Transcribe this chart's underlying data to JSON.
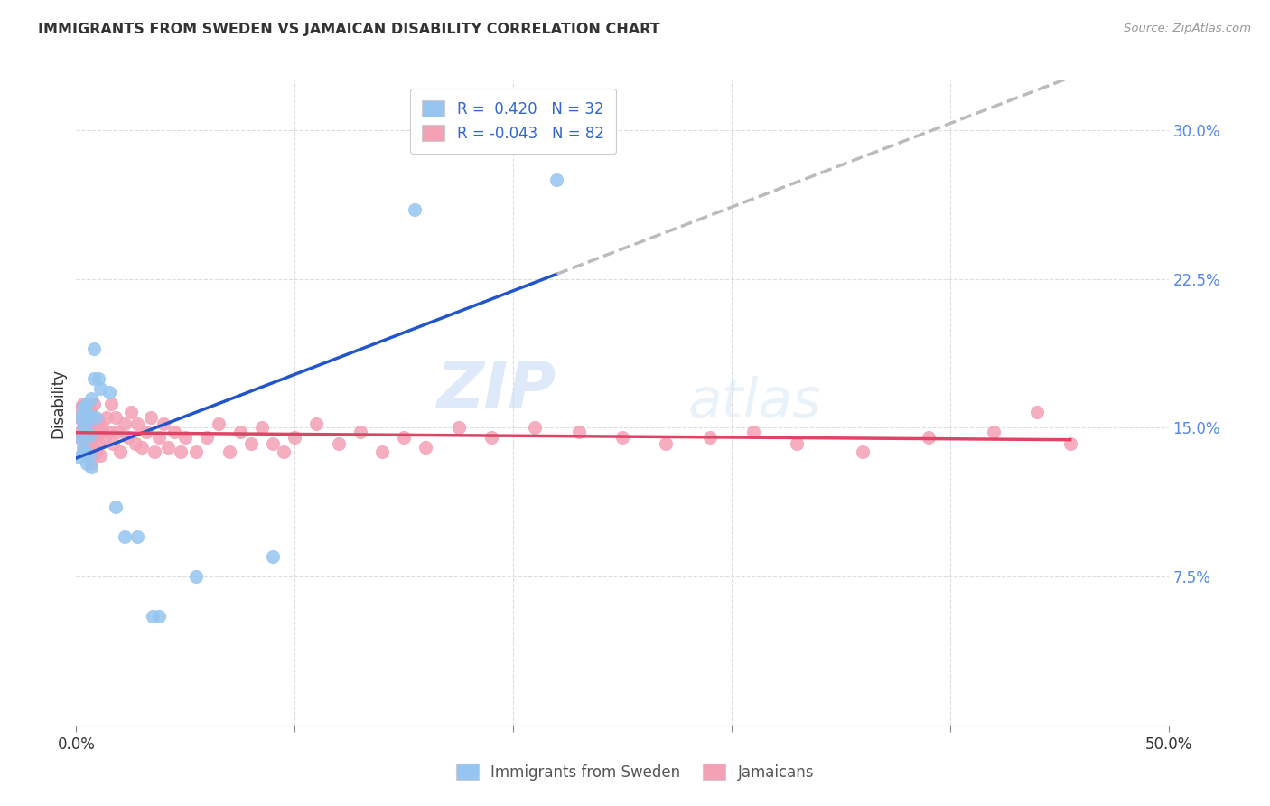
{
  "title": "IMMIGRANTS FROM SWEDEN VS JAMAICAN DISABILITY CORRELATION CHART",
  "source": "Source: ZipAtlas.com",
  "ylabel": "Disability",
  "xlim": [
    0.0,
    0.5
  ],
  "ylim": [
    0.0,
    0.325
  ],
  "y_ticks": [
    0.075,
    0.15,
    0.225,
    0.3
  ],
  "legend_R1": "0.420",
  "legend_N1": "32",
  "legend_R2": "-0.043",
  "legend_N2": "82",
  "color_sweden": "#95C5F0",
  "color_jamaica": "#F4A0B5",
  "trendline_sweden_color": "#2255CC",
  "trendline_jamaica_color": "#DD4466",
  "trendline_extrapolate_color": "#BBBBBB",
  "watermark_zip": "ZIP",
  "watermark_atlas": "atlas",
  "sweden_x": [
    0.001,
    0.002,
    0.002,
    0.003,
    0.003,
    0.003,
    0.004,
    0.004,
    0.004,
    0.005,
    0.005,
    0.005,
    0.006,
    0.006,
    0.006,
    0.007,
    0.007,
    0.008,
    0.008,
    0.009,
    0.01,
    0.011,
    0.015,
    0.018,
    0.022,
    0.028,
    0.035,
    0.038,
    0.055,
    0.09,
    0.155,
    0.22
  ],
  "sweden_y": [
    0.135,
    0.145,
    0.155,
    0.14,
    0.15,
    0.16,
    0.138,
    0.148,
    0.158,
    0.132,
    0.152,
    0.162,
    0.136,
    0.146,
    0.156,
    0.13,
    0.165,
    0.175,
    0.19,
    0.155,
    0.175,
    0.17,
    0.168,
    0.11,
    0.095,
    0.095,
    0.055,
    0.055,
    0.075,
    0.085,
    0.26,
    0.275
  ],
  "jamaica_x": [
    0.001,
    0.001,
    0.002,
    0.002,
    0.003,
    0.003,
    0.003,
    0.004,
    0.004,
    0.004,
    0.005,
    0.005,
    0.005,
    0.006,
    0.006,
    0.006,
    0.007,
    0.007,
    0.007,
    0.008,
    0.008,
    0.008,
    0.009,
    0.009,
    0.01,
    0.01,
    0.011,
    0.011,
    0.012,
    0.013,
    0.014,
    0.015,
    0.016,
    0.017,
    0.018,
    0.019,
    0.02,
    0.022,
    0.024,
    0.025,
    0.027,
    0.028,
    0.03,
    0.032,
    0.034,
    0.036,
    0.038,
    0.04,
    0.042,
    0.045,
    0.048,
    0.05,
    0.055,
    0.06,
    0.065,
    0.07,
    0.075,
    0.08,
    0.085,
    0.09,
    0.095,
    0.1,
    0.11,
    0.12,
    0.13,
    0.14,
    0.15,
    0.16,
    0.175,
    0.19,
    0.21,
    0.23,
    0.25,
    0.27,
    0.29,
    0.31,
    0.33,
    0.36,
    0.39,
    0.42,
    0.44,
    0.455
  ],
  "jamaica_y": [
    0.145,
    0.155,
    0.148,
    0.16,
    0.138,
    0.15,
    0.162,
    0.142,
    0.152,
    0.16,
    0.136,
    0.148,
    0.158,
    0.14,
    0.15,
    0.16,
    0.132,
    0.145,
    0.158,
    0.14,
    0.152,
    0.162,
    0.138,
    0.148,
    0.142,
    0.154,
    0.136,
    0.148,
    0.15,
    0.145,
    0.155,
    0.148,
    0.162,
    0.142,
    0.155,
    0.148,
    0.138,
    0.152,
    0.145,
    0.158,
    0.142,
    0.152,
    0.14,
    0.148,
    0.155,
    0.138,
    0.145,
    0.152,
    0.14,
    0.148,
    0.138,
    0.145,
    0.138,
    0.145,
    0.152,
    0.138,
    0.148,
    0.142,
    0.15,
    0.142,
    0.138,
    0.145,
    0.152,
    0.142,
    0.148,
    0.138,
    0.145,
    0.14,
    0.15,
    0.145,
    0.15,
    0.148,
    0.145,
    0.142,
    0.145,
    0.148,
    0.142,
    0.138,
    0.145,
    0.148,
    0.158,
    0.142
  ]
}
